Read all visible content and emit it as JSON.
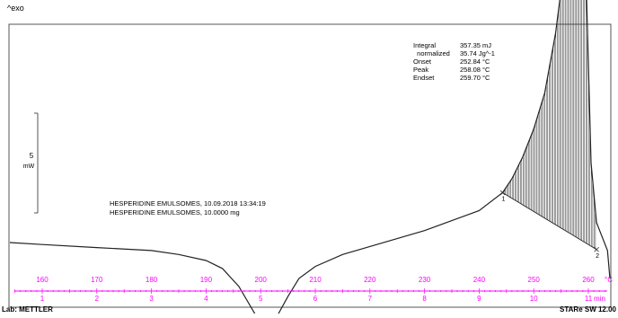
{
  "header": {
    "exo_label": "^exo"
  },
  "scale_bar": {
    "value": "5",
    "unit": "mW"
  },
  "sample_lines": [
    "HESPERIDINE EMULSOMES, 10.09.2018 13:34:19",
    "HESPERIDINE EMULSOMES, 10.0000 mg"
  ],
  "results": [
    {
      "label": "Integral",
      "value": "357.35 mJ"
    },
    {
      "label": "  normalized",
      "value": "35.74 Jg^-1"
    },
    {
      "label": "Onset",
      "value": "252.84 °C"
    },
    {
      "label": "Peak",
      "value": "258.08 °C"
    },
    {
      "label": "Endset",
      "value": "259.70 °C"
    }
  ],
  "footer": {
    "left_text": "Lab: METTLER",
    "right_text": "STARe SW 12.00"
  },
  "colors": {
    "axis": "#ff00ff",
    "curve": "#222222",
    "frame": "#555555",
    "hatch": "#333333"
  },
  "chart_data": {
    "type": "line",
    "temperature_axis": {
      "label": "°C",
      "ticks": [
        "160",
        "170",
        "180",
        "190",
        "200",
        "210",
        "220",
        "230",
        "240",
        "250",
        "260"
      ],
      "values": [
        160,
        170,
        180,
        190,
        200,
        210,
        220,
        230,
        240,
        250,
        260
      ]
    },
    "time_axis": {
      "label": "min",
      "ticks": [
        "1",
        "2",
        "3",
        "4",
        "5",
        "6",
        "7",
        "8",
        "9",
        "10",
        "11"
      ],
      "values": [
        1,
        2,
        3,
        4,
        5,
        6,
        7,
        8,
        9,
        10,
        11
      ]
    },
    "y_range_mW": [
      -4.5,
      22.5
    ],
    "series": [
      {
        "points": [
          [
            150,
            0.0
          ],
          [
            160,
            -0.1
          ],
          [
            170,
            -0.25
          ],
          [
            180,
            -0.4
          ],
          [
            185,
            -0.6
          ],
          [
            190,
            -0.9
          ],
          [
            193,
            -1.3
          ],
          [
            196,
            -2.2
          ],
          [
            199,
            -3.6
          ],
          [
            201,
            -4.2
          ],
          [
            203,
            -3.7
          ],
          [
            205,
            -2.7
          ],
          [
            207,
            -1.8
          ],
          [
            210,
            -1.2
          ],
          [
            215,
            -0.6
          ],
          [
            220,
            -0.2
          ],
          [
            225,
            0.2
          ],
          [
            230,
            0.6
          ],
          [
            235,
            1.1
          ],
          [
            240,
            1.6
          ],
          [
            244.3,
            2.5
          ],
          [
            246,
            3.2
          ],
          [
            248,
            4.3
          ],
          [
            250,
            5.7
          ],
          [
            252,
            7.5
          ],
          [
            254,
            10.5
          ],
          [
            256,
            14.8
          ],
          [
            257.2,
            18.5
          ],
          [
            258.08,
            21.6
          ],
          [
            259,
            19.5
          ],
          [
            259.7,
            12.0
          ],
          [
            260.5,
            4.0
          ],
          [
            261.5,
            1.0
          ],
          [
            263.5,
            -0.4
          ],
          [
            265,
            -1.8
          ]
        ]
      }
    ],
    "baseline": {
      "start": [
        244.3,
        2.5
      ],
      "end": [
        261.5,
        -0.35
      ]
    },
    "markers": [
      "1",
      "2"
    ],
    "integral": {
      "from": 244.3,
      "to": 261.5
    },
    "peak_T": 258.08
  }
}
